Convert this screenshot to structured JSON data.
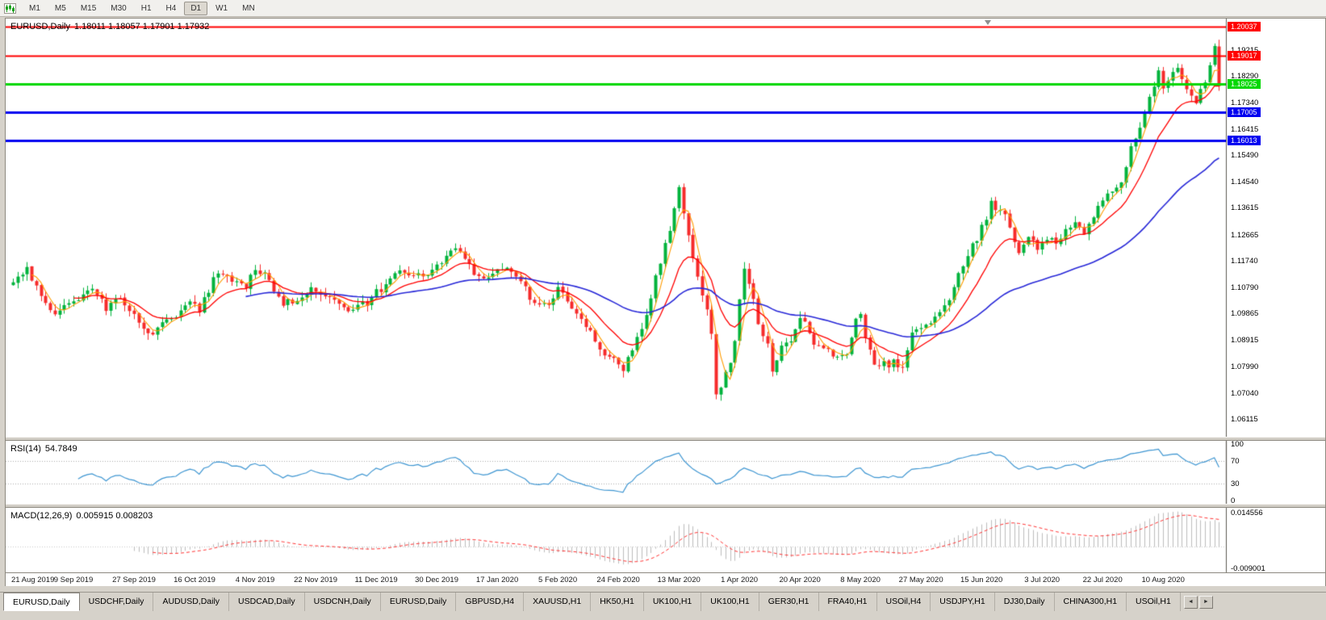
{
  "toolbar": {
    "timeframes": [
      "M1",
      "M5",
      "M15",
      "M30",
      "H1",
      "H4",
      "D1",
      "W1",
      "MN"
    ],
    "active": "D1"
  },
  "chart_data": {
    "type": "candlestick",
    "symbol": "EURUSD",
    "period": "Daily",
    "title": {
      "symbol_period": "EURUSD,Daily",
      "ohlc": "1.18011 1.18057 1.17901 1.17932"
    },
    "open": "1.18011",
    "high": "1.18057",
    "low": "1.17901",
    "close": "1.17932",
    "last_close": 1.17932,
    "bars_total": 260,
    "label_every": 13,
    "noise": 0.0013,
    "wick": 0.0024,
    "colors": {
      "bull": "#00B33C",
      "bear": "#F62B2B"
    },
    "y_axis_range": {
      "top": 1.2022,
      "bottom": 1.056
    },
    "y_ticks": [
      "1.19215",
      "1.18290",
      "1.17340",
      "1.16415",
      "1.15490",
      "1.14540",
      "1.13615",
      "1.12665",
      "1.11740",
      "1.10790",
      "1.09865",
      "1.08915",
      "1.07990",
      "1.07040",
      "1.06115"
    ],
    "hlines": [
      {
        "price": 1.20037,
        "label": "1.20037",
        "color": "#FF0000",
        "width": 2
      },
      {
        "price": 1.19017,
        "label": "1.19017",
        "color": "#FF0000",
        "width": 2
      },
      {
        "price": 1.18025,
        "label": "1.18025",
        "color": "#00D800",
        "width": 3
      },
      {
        "price": 1.17005,
        "label": "1.17005",
        "color": "#0000F0",
        "width": 3
      },
      {
        "price": 1.16013,
        "label": "1.16013",
        "color": "#0000F0",
        "width": 3
      }
    ],
    "x_labels": [
      "21 Aug 2019",
      "9 Sep 2019",
      "27 Sep 2019",
      "16 Oct 2019",
      "4 Nov 2019",
      "22 Nov 2019",
      "11 Dec 2019",
      "30 Dec 2019",
      "17 Jan 2020",
      "5 Feb 2020",
      "24 Feb 2020",
      "13 Mar 2020",
      "1 Apr 2020",
      "20 Apr 2020",
      "8 May 2020",
      "27 May 2020",
      "15 Jun 2020",
      "3 Jul 2020",
      "22 Jul 2020",
      "10 Aug 2020"
    ],
    "moving_averages": [
      {
        "name": "ma-fast",
        "period": 4,
        "method": "sma",
        "color": "#FF9C00"
      },
      {
        "name": "ma-medium",
        "period": 13,
        "method": "ema",
        "color": "#FF0000"
      },
      {
        "name": "ma-slow",
        "period": 50,
        "method": "ema",
        "color": "#2828D8"
      }
    ],
    "price_anchors": [
      [
        0,
        1.109
      ],
      [
        3,
        1.114
      ],
      [
        6,
        1.1058
      ],
      [
        9,
        1.0975
      ],
      [
        12,
        1.103
      ],
      [
        15,
        1.105
      ],
      [
        17,
        1.1068
      ],
      [
        20,
        1.1005
      ],
      [
        23,
        1.104
      ],
      [
        26,
        1.099
      ],
      [
        28,
        1.0935
      ],
      [
        30,
        1.0905
      ],
      [
        32,
        1.0945
      ],
      [
        34,
        1.097
      ],
      [
        36,
        1.1
      ],
      [
        38,
        1.104
      ],
      [
        40,
        1.1
      ],
      [
        42,
        1.1065
      ],
      [
        44,
        1.114
      ],
      [
        46,
        1.112
      ],
      [
        48,
        1.1095
      ],
      [
        50,
        1.1075
      ],
      [
        52,
        1.1148
      ],
      [
        54,
        1.113
      ],
      [
        56,
        1.1075
      ],
      [
        58,
        1.1022
      ],
      [
        60,
        1.103
      ],
      [
        62,
        1.104
      ],
      [
        64,
        1.1072
      ],
      [
        66,
        1.1062
      ],
      [
        68,
        1.104
      ],
      [
        70,
        1.1015
      ],
      [
        72,
        1.1
      ],
      [
        74,
        1.101
      ],
      [
        76,
        1.1022
      ],
      [
        78,
        1.106
      ],
      [
        80,
        1.109
      ],
      [
        83,
        1.1135
      ],
      [
        85,
        1.111
      ],
      [
        87,
        1.112
      ],
      [
        89,
        1.1128
      ],
      [
        91,
        1.115
      ],
      [
        93,
        1.1185
      ],
      [
        95,
        1.1212
      ],
      [
        97,
        1.118
      ],
      [
        99,
        1.113
      ],
      [
        101,
        1.1105
      ],
      [
        103,
        1.113
      ],
      [
        105,
        1.1152
      ],
      [
        107,
        1.113
      ],
      [
        109,
        1.1108
      ],
      [
        111,
        1.104
      ],
      [
        113,
        1.1018
      ],
      [
        115,
        1.1005
      ],
      [
        117,
        1.1088
      ],
      [
        119,
        1.1035
      ],
      [
        121,
        1.0985
      ],
      [
        123,
        1.095
      ],
      [
        125,
        1.0895
      ],
      [
        127,
        1.0845
      ],
      [
        129,
        1.084
      ],
      [
        131,
        1.079
      ],
      [
        133,
        1.0855
      ],
      [
        135,
        1.093
      ],
      [
        137,
        1.105
      ],
      [
        139,
        1.1175
      ],
      [
        141,
        1.128
      ],
      [
        143,
        1.144
      ],
      [
        144,
        1.134
      ],
      [
        145,
        1.127
      ],
      [
        146,
        1.118
      ],
      [
        147,
        1.1105
      ],
      [
        148,
        1.106
      ],
      [
        149,
        1.101
      ],
      [
        150,
        1.092
      ],
      [
        151,
        1.069
      ],
      [
        152,
        1.073
      ],
      [
        153,
        1.077
      ],
      [
        154,
        1.082
      ],
      [
        155,
        1.088
      ],
      [
        156,
        1.103
      ],
      [
        157,
        1.114
      ],
      [
        158,
        1.1085
      ],
      [
        159,
        1.103
      ],
      [
        160,
        1.096
      ],
      [
        162,
        1.087
      ],
      [
        163,
        1.079
      ],
      [
        164,
        1.083
      ],
      [
        165,
        1.086
      ],
      [
        167,
        1.0895
      ],
      [
        169,
        1.098
      ],
      [
        171,
        1.091
      ],
      [
        173,
        1.0865
      ],
      [
        175,
        1.086
      ],
      [
        177,
        1.082
      ],
      [
        179,
        1.084
      ],
      [
        181,
        1.0955
      ],
      [
        182,
        1.098
      ],
      [
        183,
        1.09
      ],
      [
        185,
        1.0795
      ],
      [
        187,
        1.0805
      ],
      [
        189,
        1.081
      ],
      [
        191,
        1.08
      ],
      [
        193,
        1.0915
      ],
      [
        195,
        1.0935
      ],
      [
        197,
        1.096
      ],
      [
        199,
        1.098
      ],
      [
        201,
        1.1035
      ],
      [
        203,
        1.1135
      ],
      [
        205,
        1.1195
      ],
      [
        207,
        1.1255
      ],
      [
        209,
        1.133
      ],
      [
        210,
        1.1375
      ],
      [
        211,
        1.136
      ],
      [
        213,
        1.1345
      ],
      [
        215,
        1.125
      ],
      [
        216,
        1.1205
      ],
      [
        218,
        1.126
      ],
      [
        220,
        1.122
      ],
      [
        222,
        1.125
      ],
      [
        224,
        1.1235
      ],
      [
        226,
        1.1275
      ],
      [
        228,
        1.131
      ],
      [
        230,
        1.128
      ],
      [
        232,
        1.134
      ],
      [
        234,
        1.1395
      ],
      [
        236,
        1.142
      ],
      [
        238,
        1.1445
      ],
      [
        240,
        1.157
      ],
      [
        242,
        1.1655
      ],
      [
        244,
        1.175
      ],
      [
        246,
        1.1845
      ],
      [
        247,
        1.178
      ],
      [
        248,
        1.181
      ],
      [
        250,
        1.1865
      ],
      [
        252,
        1.1785
      ],
      [
        254,
        1.174
      ],
      [
        255,
        1.178
      ],
      [
        256,
        1.1815
      ],
      [
        257,
        1.187
      ],
      [
        258,
        1.193
      ],
      [
        259,
        1.1793
      ]
    ],
    "indicators": {
      "rsi": {
        "label": "RSI(14)",
        "value": "54.7849",
        "period": 14,
        "color": "#3E96D2",
        "levels": [
          "100",
          "70",
          "30",
          "0"
        ],
        "level_lines": [
          70,
          30
        ]
      },
      "macd": {
        "label": "MACD(12,26,9)",
        "values": "0.005915 0.008203",
        "fast": 12,
        "slow": 26,
        "signal": 9,
        "hist_color": "#BDBDBD",
        "signal_color": "#FF3333",
        "axis_labels": [
          "0.014556",
          "-0.009001"
        ]
      }
    }
  },
  "tabs": {
    "items": [
      {
        "label": "EURUSD,Daily",
        "active": true
      },
      {
        "label": "USDCHF,Daily"
      },
      {
        "label": "AUDUSD,Daily"
      },
      {
        "label": "USDCAD,Daily"
      },
      {
        "label": "USDCNH,Daily"
      },
      {
        "label": "EURUSD,Daily"
      },
      {
        "label": "GBPUSD,H4"
      },
      {
        "label": "XAUUSD,H1"
      },
      {
        "label": "HK50,H1"
      },
      {
        "label": "UK100,H1"
      },
      {
        "label": "UK100,H1"
      },
      {
        "label": "GER30,H1"
      },
      {
        "label": "FRA40,H1"
      },
      {
        "label": "USOil,H4"
      },
      {
        "label": "USDJPY,H1"
      },
      {
        "label": "DJ30,Daily"
      },
      {
        "label": "CHINA300,H1"
      },
      {
        "label": "USOil,H1"
      }
    ],
    "arrows": [
      "◄",
      "►"
    ]
  }
}
